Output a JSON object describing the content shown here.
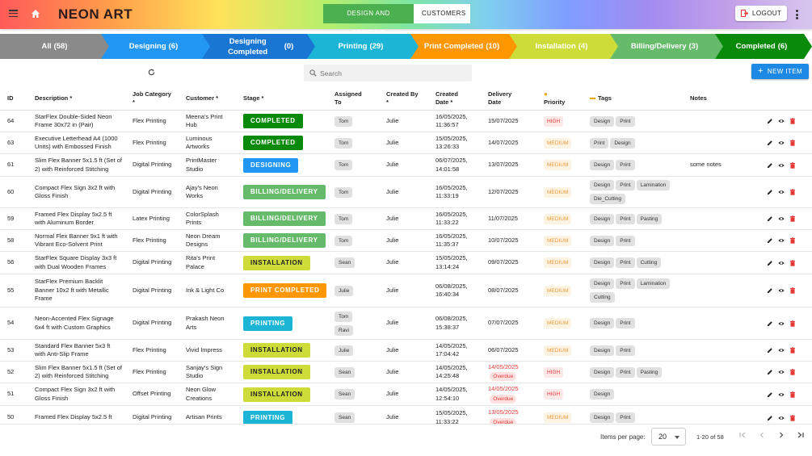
{
  "header": {
    "brand": "NEON ART",
    "tabs": [
      {
        "label": "DESIGN AND PRINTING",
        "active": true
      },
      {
        "label": "CUSTOMERS",
        "active": false
      }
    ],
    "logout_label": "LOGOUT"
  },
  "stages": [
    {
      "label": "All",
      "count": "(58)",
      "color": "#8a8a8a"
    },
    {
      "label": "Designing",
      "count": "(6)",
      "color": "#2196f3"
    },
    {
      "label": "Designing Completed",
      "count": "(0)",
      "color": "#1976d2"
    },
    {
      "label": "Printing",
      "count": "(29)",
      "color": "#1cb5d6"
    },
    {
      "label": "Print Completed",
      "count": "(10)",
      "color": "#ff9800"
    },
    {
      "label": "Installation",
      "count": "(4)",
      "color": "#cddc39"
    },
    {
      "label": "Billing/Delivery",
      "count": "(3)",
      "color": "#66bb6a"
    },
    {
      "label": "Completed",
      "count": "(6)",
      "color": "#0a8a0a"
    }
  ],
  "toolbar": {
    "search_placeholder": "Search",
    "new_item_label": "NEW ITEM"
  },
  "columns": {
    "id": "ID",
    "description": "Description *",
    "job_category": "Job Category *",
    "customer": "Customer *",
    "stage": "Stage *",
    "assigned_to": "Assigned To",
    "created_by": "Created By *",
    "created_date": "Created Date *",
    "delivery_date": "Delivery Date",
    "priority": "Priority",
    "tags": "Tags",
    "notes": "Notes"
  },
  "stage_colors": {
    "COMPLETED": "#0a8a0a",
    "DESIGNING": "#2196f3",
    "BILLING/DELIVERY": "#66bb6a",
    "INSTALLATION": "#cddc39",
    "PRINT COMPLETED": "#ff9800",
    "PRINTING": "#1cb5d6"
  },
  "rows": [
    {
      "id": "64",
      "description": "StarFlex Double-Sided Neon Frame 30x72 in (Pair)",
      "category": "Flex Printing",
      "customer": "Meena's Print Hub",
      "stage": "COMPLETED",
      "assigned": [
        "Tom"
      ],
      "created_by": "Julie",
      "created_date": "16/05/2025, 11:36:57",
      "delivery": "15/07/2025",
      "overdue": false,
      "priority": "HIGH",
      "tags": [
        "Design",
        "Print"
      ],
      "notes": ""
    },
    {
      "id": "63",
      "description": "Executive Letterhead A4 (1000 Units) with Embossed Finish",
      "category": "Flex Printing",
      "customer": "Luminous Artworks",
      "stage": "COMPLETED",
      "assigned": [
        "Tom"
      ],
      "created_by": "Julie",
      "created_date": "15/05/2025, 13:26:33",
      "delivery": "14/07/2025",
      "overdue": false,
      "priority": "MEDIUM",
      "tags": [
        "Print",
        "Design"
      ],
      "notes": ""
    },
    {
      "id": "61",
      "description": "Slim Flex Banner 5x1.5 ft (Set of 2) with Reinforced Stitching",
      "category": "Digital Printing",
      "customer": "PrintMaster Studio",
      "stage": "DESIGNING",
      "assigned": [
        "Tom"
      ],
      "created_by": "Julie",
      "created_date": "06/07/2025, 14:01:58",
      "delivery": "13/07/2025",
      "overdue": false,
      "priority": "MEDIUM",
      "tags": [
        "Design",
        "Print"
      ],
      "notes": "some notes"
    },
    {
      "id": "60",
      "description": "Compact Flex Sign 3x2 ft with Gloss Finish",
      "category": "Digital Printing",
      "customer": "Ajay's Neon Works",
      "stage": "BILLING/DELIVERY",
      "assigned": [
        "Tom"
      ],
      "created_by": "Julie",
      "created_date": "16/05/2025, 11:33:19",
      "delivery": "12/07/2025",
      "overdue": false,
      "priority": "MEDIUM",
      "tags": [
        "Design",
        "Print",
        "Lamination",
        "Die_Cutting"
      ],
      "notes": ""
    },
    {
      "id": "59",
      "description": "Framed Flex Display 5x2.5 ft with Aluminum Border",
      "category": "Latex Printing",
      "customer": "ColorSplash Prints",
      "stage": "BILLING/DELIVERY",
      "assigned": [
        "Tom"
      ],
      "created_by": "Julie",
      "created_date": "16/05/2025, 11:33:22",
      "delivery": "11/07/2025",
      "overdue": false,
      "priority": "MEDIUM",
      "tags": [
        "Design",
        "Print",
        "Pasting"
      ],
      "notes": ""
    },
    {
      "id": "58",
      "description": "Normal Flex Banner 9x1 ft with Vibrant Eco-Solvent Print",
      "category": "Flex Printing",
      "customer": "Neon Dream Designs",
      "stage": "BILLING/DELIVERY",
      "assigned": [
        "Tom"
      ],
      "created_by": "Julie",
      "created_date": "16/05/2025, 11:35:37",
      "delivery": "10/07/2025",
      "overdue": false,
      "priority": "MEDIUM",
      "tags": [
        "Design",
        "Print"
      ],
      "notes": ""
    },
    {
      "id": "56",
      "description": "StarFlex Square Display 3x3 ft with Dual Wooden Frames",
      "category": "Digital Printing",
      "customer": "Rita's Print Palace",
      "stage": "INSTALLATION",
      "assigned": [
        "Sean"
      ],
      "created_by": "Julie",
      "created_date": "15/05/2025, 13:14:24",
      "delivery": "09/07/2025",
      "overdue": false,
      "priority": "MEDIUM",
      "tags": [
        "Design",
        "Print",
        "Cutting"
      ],
      "notes": ""
    },
    {
      "id": "55",
      "description": "StarFlex Premium Backlit Banner 10x2 ft with Metallic Frame",
      "category": "Digital Printing",
      "customer": "Ink & Light Co",
      "stage": "PRINT COMPLETED",
      "assigned": [
        "Julie"
      ],
      "created_by": "Julie",
      "created_date": "06/08/2025, 16:40:34",
      "delivery": "08/07/2025",
      "overdue": false,
      "priority": "MEDIUM",
      "tags": [
        "Design",
        "Print",
        "Lamination",
        "Cutting"
      ],
      "notes": ""
    },
    {
      "id": "54",
      "description": "Neon-Accented Flex Signage 6x4 ft with Custom Graphics",
      "category": "Digital Printing",
      "customer": "Prakash Neon Arts",
      "stage": "PRINTING",
      "assigned": [
        "Tom",
        "Ravi"
      ],
      "created_by": "Julie",
      "created_date": "06/08/2025, 15:38:37",
      "delivery": "07/07/2025",
      "overdue": false,
      "priority": "MEDIUM",
      "tags": [
        "Design",
        "Print"
      ],
      "notes": ""
    },
    {
      "id": "53",
      "description": "Standard Flex Banner 5x3 ft with Anti-Slip Frame",
      "category": "Flex Printing",
      "customer": "Vivid Impress",
      "stage": "INSTALLATION",
      "assigned": [
        "Julie"
      ],
      "created_by": "Julie",
      "created_date": "14/05/2025, 17:04:42",
      "delivery": "06/07/2025",
      "overdue": false,
      "priority": "MEDIUM",
      "tags": [
        "Design",
        "Print"
      ],
      "notes": ""
    },
    {
      "id": "52",
      "description": "Slim Flex Banner 5x1.5 ft (Set of 2) with Reinforced Stitching",
      "category": "Flex Printing",
      "customer": "Sanjay's Sign Studio",
      "stage": "INSTALLATION",
      "assigned": [
        "Sean"
      ],
      "created_by": "Julie",
      "created_date": "14/05/2025, 14:25:48",
      "delivery": "14/05/2025",
      "overdue": true,
      "priority": "HIGH",
      "tags": [
        "Design",
        "Print",
        "Pasting"
      ],
      "notes": ""
    },
    {
      "id": "51",
      "description": "Compact Flex Sign 3x2 ft with Gloss Finish",
      "category": "Offset Printing",
      "customer": "Neon Glow Creations",
      "stage": "INSTALLATION",
      "assigned": [
        "Sean"
      ],
      "created_by": "Julie",
      "created_date": "14/05/2025, 12:54:10",
      "delivery": "14/05/2025",
      "overdue": true,
      "priority": "HIGH",
      "tags": [
        "Design"
      ],
      "notes": ""
    },
    {
      "id": "50",
      "description": "Framed Flex Display 5x2.5 ft",
      "category": "Digital Printing",
      "customer": "Artisan Prints",
      "stage": "PRINTING",
      "assigned": [
        "Sean"
      ],
      "created_by": "Julie",
      "created_date": "15/05/2025, 11:33:22",
      "delivery": "13/05/2025",
      "overdue": true,
      "priority": "MEDIUM",
      "tags": [
        "Design",
        "Print"
      ],
      "notes": ""
    }
  ],
  "overdue_label": "Overdue",
  "footer": {
    "items_per_page_label": "Items per page:",
    "items_per_page": "20",
    "range": "1-20 of 58"
  }
}
